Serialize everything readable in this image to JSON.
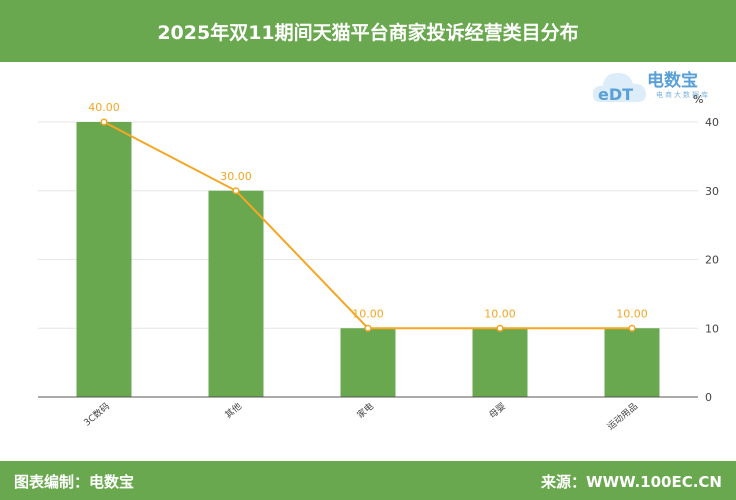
{
  "header": {
    "title": "2025年双11期间天猫平台商家投诉经营类目分布"
  },
  "footer": {
    "left": "图表编制：电数宝",
    "right": "来源：WWW.100EC.CN"
  },
  "logo": {
    "mark": "eDT",
    "name": "电数宝",
    "sub": "电商大数据库"
  },
  "colors": {
    "bar": "#6aa84f",
    "line": "#f5a623",
    "header": "#6aa84f"
  },
  "chart_data": {
    "type": "bar",
    "categories": [
      "3C数码",
      "其他",
      "家电",
      "母婴",
      "运动用品"
    ],
    "series": [
      {
        "type": "bar",
        "values": [
          40,
          30,
          10,
          10,
          10
        ]
      },
      {
        "type": "line",
        "values": [
          40.0,
          30.0,
          10.0,
          10.0,
          10.0
        ]
      }
    ],
    "data_labels": [
      "40.00",
      "30.00",
      "10.00",
      "10.00",
      "10.00"
    ],
    "y_unit": "%",
    "y_axis_position": "right",
    "yticks": [
      0,
      10,
      20,
      30,
      40
    ],
    "ylim": [
      0,
      40
    ],
    "grid": true,
    "legend": "none"
  }
}
